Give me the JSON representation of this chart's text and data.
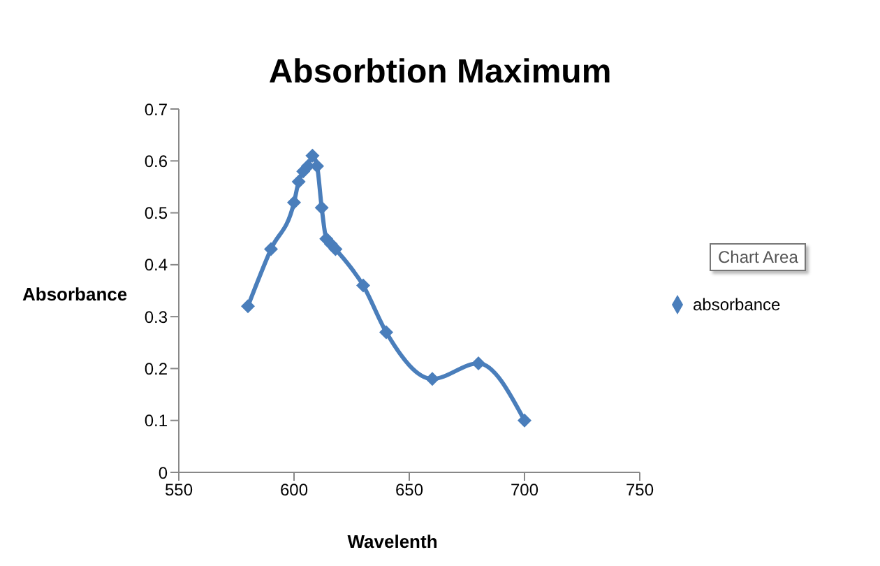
{
  "chart_data": {
    "type": "line",
    "title": "Absorbtion Maximum",
    "xlabel": "Wavelenth",
    "ylabel": "Absorbance",
    "x": [
      580,
      590,
      600,
      602,
      604,
      606,
      608,
      610,
      612,
      614,
      616,
      618,
      630,
      640,
      660,
      680,
      700
    ],
    "series": [
      {
        "name": "absorbance",
        "color": "#4a7ebb",
        "values": [
          0.32,
          0.43,
          0.52,
          0.56,
          0.58,
          0.59,
          0.61,
          0.59,
          0.51,
          0.45,
          0.44,
          0.43,
          0.36,
          0.27,
          0.18,
          0.21,
          0.1
        ]
      }
    ],
    "xlim": [
      550,
      750
    ],
    "xticks": [
      550,
      600,
      650,
      700,
      750
    ],
    "ylim": [
      0,
      0.7
    ],
    "yticks": [
      0,
      0.1,
      0.2,
      0.3,
      0.4,
      0.5,
      0.6,
      0.7
    ],
    "grid": false,
    "legend": "right",
    "marker": "diamond",
    "line_style": "solid",
    "annotations": [
      "Chart Area"
    ]
  }
}
